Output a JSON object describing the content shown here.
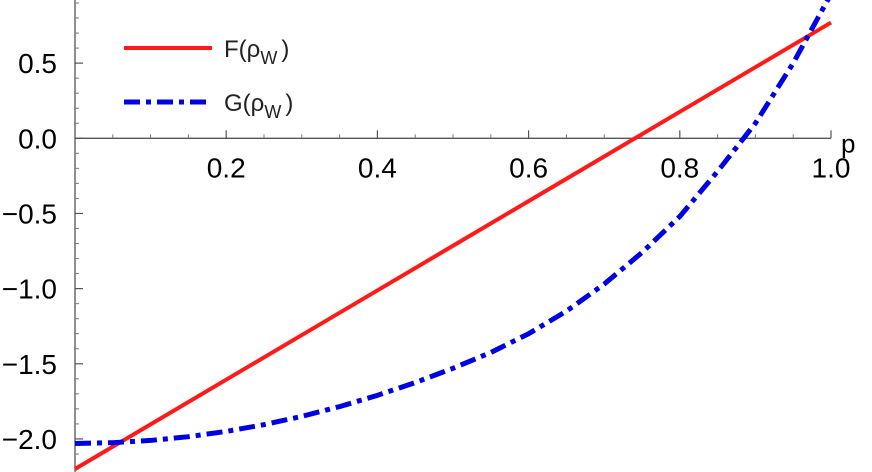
{
  "chart_data": {
    "type": "line",
    "title": "",
    "xlabel": "p",
    "ylabel": "",
    "xlim": [
      0,
      1.0
    ],
    "ylim": [
      -2.22,
      0.92
    ],
    "x_ticks": [
      {
        "value": 0.2,
        "label": "0.2"
      },
      {
        "value": 0.4,
        "label": "0.4"
      },
      {
        "value": 0.6,
        "label": "0.6"
      },
      {
        "value": 0.8,
        "label": "0.8"
      },
      {
        "value": 1.0,
        "label": "1.0"
      }
    ],
    "y_ticks": [
      {
        "value": 0.5,
        "label": "0.5"
      },
      {
        "value": 0.0,
        "label": "0.0"
      },
      {
        "value": -0.5,
        "label": "−0.5"
      },
      {
        "value": -1.0,
        "label": "−1.0"
      },
      {
        "value": -1.5,
        "label": "−1.5"
      },
      {
        "value": -2.0,
        "label": "−2.0"
      }
    ],
    "legend_position": "top-left",
    "series": [
      {
        "name": "F(ρ",
        "name_sub": "W",
        "name_close": ")",
        "color": "#ff1a1a",
        "style": "solid",
        "x": [
          0,
          0.1,
          0.2,
          0.3,
          0.4,
          0.5,
          0.6,
          0.7,
          0.8,
          0.9,
          1.0
        ],
        "y": [
          -2.2,
          -1.903,
          -1.606,
          -1.309,
          -1.012,
          -0.715,
          -0.418,
          -0.121,
          0.176,
          0.473,
          0.77
        ]
      },
      {
        "name": "G(ρ",
        "name_sub": "W",
        "name_close": ")",
        "color": "#0000e6",
        "style": "dash-dot",
        "x": [
          0,
          0.05,
          0.1,
          0.15,
          0.2,
          0.25,
          0.3,
          0.35,
          0.4,
          0.45,
          0.5,
          0.55,
          0.6,
          0.65,
          0.7,
          0.75,
          0.8,
          0.85,
          0.9,
          0.95,
          1.0
        ],
        "y": [
          -2.03,
          -2.025,
          -2.01,
          -1.985,
          -1.95,
          -1.905,
          -1.85,
          -1.785,
          -1.71,
          -1.625,
          -1.53,
          -1.425,
          -1.3,
          -1.15,
          -0.97,
          -0.76,
          -0.52,
          -0.22,
          0.1,
          0.5,
          0.96
        ]
      }
    ]
  }
}
